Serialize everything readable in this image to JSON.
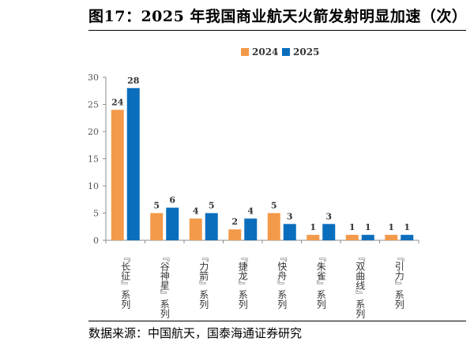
{
  "header": {
    "title": "图17：2025 年我国商业航天火箭发射明显加速（次）"
  },
  "footer": {
    "source": "数据来源：中国航天，国泰海通证券研究"
  },
  "chart_data": {
    "type": "bar",
    "title": "",
    "xlabel": "",
    "ylabel": "",
    "categories": [
      "『长征』系列",
      "『谷神星』系列",
      "『力箭』系列",
      "『捷龙』系列",
      "『快舟』系列",
      "『朱雀』系列",
      "『双曲线』系列",
      "『引力』系列"
    ],
    "series": [
      {
        "name": "2024",
        "values": [
          24,
          5,
          4,
          2,
          5,
          1,
          1,
          1
        ],
        "color": "#F39A4A"
      },
      {
        "name": "2025",
        "values": [
          28,
          6,
          5,
          4,
          3,
          3,
          1,
          1
        ],
        "color": "#0A6EBD"
      }
    ],
    "ylim": [
      0,
      30
    ],
    "yticks": [
      0,
      5,
      10,
      15,
      20,
      25,
      30
    ],
    "grid": false,
    "legend": "top-center",
    "data_labels": true
  }
}
